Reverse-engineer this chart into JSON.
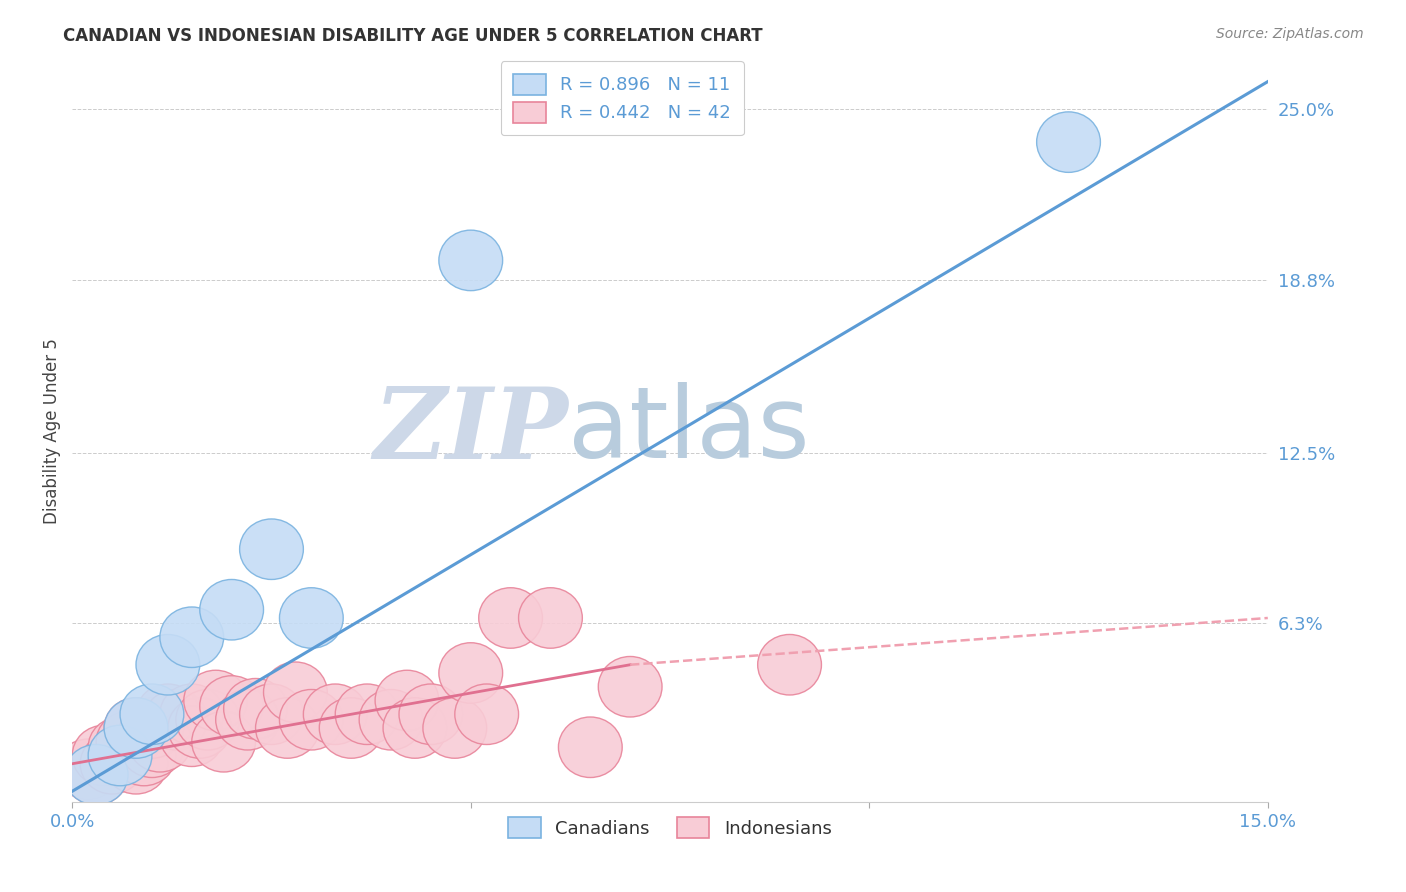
{
  "title": "CANADIAN VS INDONESIAN DISABILITY AGE UNDER 5 CORRELATION CHART",
  "source": "Source: ZipAtlas.com",
  "ylabel": "Disability Age Under 5",
  "xlim": [
    0.0,
    0.15
  ],
  "ylim": [
    -0.002,
    0.268
  ],
  "xticks": [
    0.0,
    0.05,
    0.1,
    0.15
  ],
  "xtick_labels": [
    "0.0%",
    "",
    "",
    "15.0%"
  ],
  "ytick_labels_right": [
    "25.0%",
    "18.8%",
    "12.5%",
    "6.3%",
    ""
  ],
  "ytick_positions_right": [
    0.25,
    0.188,
    0.125,
    0.063,
    0.0
  ],
  "canadian_R": 0.896,
  "canadian_N": 11,
  "indonesian_R": 0.442,
  "indonesian_N": 42,
  "canadian_color": "#7ab3e0",
  "canadian_fill": "#c5dcf5",
  "indonesian_color": "#e8849a",
  "indonesian_fill": "#f8ccd6",
  "trendline_canadian_color": "#5b9bd5",
  "trendline_indonesian_solid_color": "#e07090",
  "trendline_indonesian_dash_color": "#f0a0b0",
  "watermark_zip_color": "#cdd8e8",
  "watermark_atlas_color": "#b8ccdd",
  "background_color": "#ffffff",
  "grid_color": "#cccccc",
  "canadian_x": [
    0.003,
    0.006,
    0.008,
    0.01,
    0.012,
    0.015,
    0.02,
    0.025,
    0.03,
    0.05,
    0.125
  ],
  "canadian_y": [
    0.008,
    0.015,
    0.025,
    0.03,
    0.048,
    0.058,
    0.068,
    0.09,
    0.065,
    0.195,
    0.238
  ],
  "indonesian_x": [
    0.002,
    0.003,
    0.004,
    0.005,
    0.006,
    0.007,
    0.008,
    0.008,
    0.009,
    0.01,
    0.01,
    0.011,
    0.012,
    0.013,
    0.015,
    0.015,
    0.016,
    0.017,
    0.018,
    0.019,
    0.02,
    0.022,
    0.023,
    0.025,
    0.027,
    0.028,
    0.03,
    0.033,
    0.035,
    0.037,
    0.04,
    0.042,
    0.043,
    0.045,
    0.048,
    0.05,
    0.052,
    0.055,
    0.06,
    0.065,
    0.07,
    0.09
  ],
  "indonesian_y": [
    0.01,
    0.008,
    0.015,
    0.012,
    0.018,
    0.02,
    0.012,
    0.025,
    0.015,
    0.018,
    0.025,
    0.02,
    0.03,
    0.028,
    0.022,
    0.03,
    0.025,
    0.028,
    0.035,
    0.02,
    0.033,
    0.028,
    0.032,
    0.03,
    0.025,
    0.038,
    0.028,
    0.03,
    0.025,
    0.03,
    0.028,
    0.035,
    0.025,
    0.03,
    0.025,
    0.045,
    0.03,
    0.065,
    0.065,
    0.018,
    0.04,
    0.048
  ],
  "indo_trend_x0": 0.0,
  "indo_trend_y0": 0.012,
  "indo_trend_x_solid_end": 0.07,
  "indo_trend_y_solid_end": 0.048,
  "indo_trend_x1": 0.15,
  "indo_trend_y1": 0.065,
  "can_trend_x0": 0.0,
  "can_trend_y0": 0.002,
  "can_trend_x1": 0.15,
  "can_trend_y1": 0.26
}
